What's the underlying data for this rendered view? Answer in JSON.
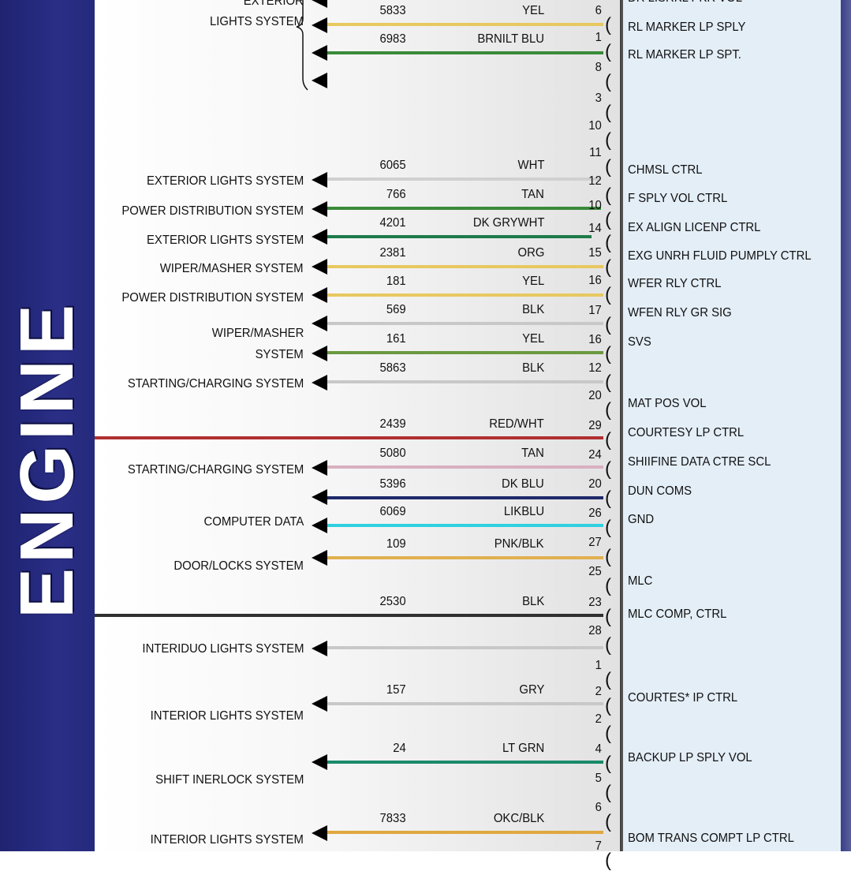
{
  "band_title": "ENGINE",
  "colors": {
    "band": "#262a7c",
    "right_panel": "#e4eef7"
  },
  "left_labels": [
    "EXTERIOR",
    "LIGHTS SYSTEM",
    "EXTERIOR LIGHTS SYSTEM",
    "POWER DISTRIBUTION SYSTEM",
    "EXTERIOR LIGHTS SYSTEM",
    "WIPER/MASHER SYSTEM",
    "POWER DISTRIBUTION SYSTEM",
    "WIPER/MASHER",
    "SYSTEM",
    "STARTING/CHARGING SYSTEM",
    "STARTING/CHARGING SYSTEM",
    "COMPUTER DATA",
    "DOOR/LOCKS SYSTEM",
    "INTERIDUO LIGHTS SYSTEM",
    "INTERIOR LIGHTS SYSTEM",
    "SHIFT INERLOCK SYSTEM",
    "INTERIOR LIGHTS SYSTEM"
  ],
  "wires": [
    {
      "circuit": "5833",
      "color_code": "YEL",
      "color": "#e8c860"
    },
    {
      "circuit": "6983",
      "color_code": "BRNILT BLU",
      "color": "#3a8a3a"
    },
    {
      "circuit": "6065",
      "color_code": "WHT",
      "color": "#d0d0d0"
    },
    {
      "circuit": "766",
      "color_code": "TAN",
      "color": "#3a8a3a"
    },
    {
      "circuit": "4201",
      "color_code": "DK GRYWHT",
      "color": "#1e7a4a"
    },
    {
      "circuit": "2381",
      "color_code": "ORG",
      "color": "#e8c860"
    },
    {
      "circuit": "181",
      "color_code": "YEL",
      "color": "#e8c860"
    },
    {
      "circuit": "569",
      "color_code": "BLK",
      "color": "#c8c8c8"
    },
    {
      "circuit": "161",
      "color_code": "YEL",
      "color": "#6a9a40"
    },
    {
      "circuit": "5863",
      "color_code": "BLK",
      "color": "#c8c8c8"
    },
    {
      "circuit": "2439",
      "color_code": "RED/WHT",
      "color": "#b03030"
    },
    {
      "circuit": "5080",
      "color_code": "TAN",
      "color": "#d8b0c0"
    },
    {
      "circuit": "5396",
      "color_code": "DK BLU",
      "color": "#1e2a6a"
    },
    {
      "circuit": "6069",
      "color_code": "LIKBLU",
      "color": "#30d0e0"
    },
    {
      "circuit": "109",
      "color_code": "PNK/BLK",
      "color": "#e0b050"
    },
    {
      "circuit": "2530",
      "color_code": "BLK",
      "color": "#303030"
    },
    {
      "circuit": "",
      "color_code": "",
      "color": "#c8c8c8"
    },
    {
      "circuit": "157",
      "color_code": "GRY",
      "color": "#c8c8c8"
    },
    {
      "circuit": "24",
      "color_code": "LT GRN",
      "color": "#1a8a6a"
    },
    {
      "circuit": "7833",
      "color_code": "OKC/BLK",
      "color": "#e0a840"
    }
  ],
  "pins": [
    "6",
    "1",
    "8",
    "3",
    "10",
    "11",
    "12",
    "10",
    "14",
    "15",
    "16",
    "17",
    "16",
    "12",
    "20",
    "29",
    "24",
    "20",
    "26",
    "27",
    "25",
    "23",
    "28",
    "1",
    "2",
    "2",
    "4",
    "5",
    "6",
    "7"
  ],
  "signals": [
    "DR LISRKL PKR VOL",
    "RL MARKER LP SPLY",
    "RL MARKER LP SPT.",
    "CHMSL CTRL",
    "F SPLY VOL CTRL",
    "EX ALIGN LICENP CTRL",
    "EXG UNRH FLUID PUMPLY CTRL",
    "WFER RLY CTRL",
    "WFEN RLY GR SIG",
    "SVS",
    "MAT POS VOL",
    "COURTESY LP CTRL",
    "SHIIFINE DATA CTRE SCL",
    "DUN COMS",
    "GND",
    "MLC",
    "MLC COMP, CTRL",
    "COURTES* IP CTRL",
    "BACKUP LP SPLY VOL",
    "BOM TRANS COMPT LP CTRL"
  ]
}
